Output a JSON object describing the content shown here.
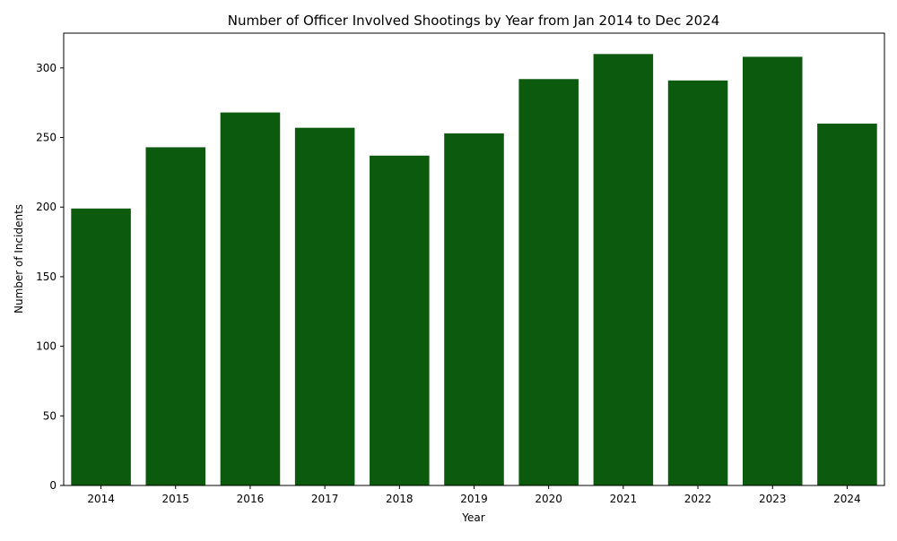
{
  "chart_data": {
    "type": "bar",
    "title": "Number of Officer Involved Shootings by Year from Jan 2014 to Dec 2024",
    "xlabel": "Year",
    "ylabel": "Number of Incidents",
    "categories": [
      "2014",
      "2015",
      "2016",
      "2017",
      "2018",
      "2019",
      "2020",
      "2021",
      "2022",
      "2023",
      "2024"
    ],
    "values": [
      199,
      243,
      268,
      257,
      237,
      253,
      292,
      310,
      291,
      308,
      260
    ],
    "ylim": [
      0,
      325
    ],
    "yticks": [
      0,
      50,
      100,
      150,
      200,
      250,
      300
    ],
    "bar_color": "#0b5a0e",
    "grid": false,
    "legend": "none"
  }
}
